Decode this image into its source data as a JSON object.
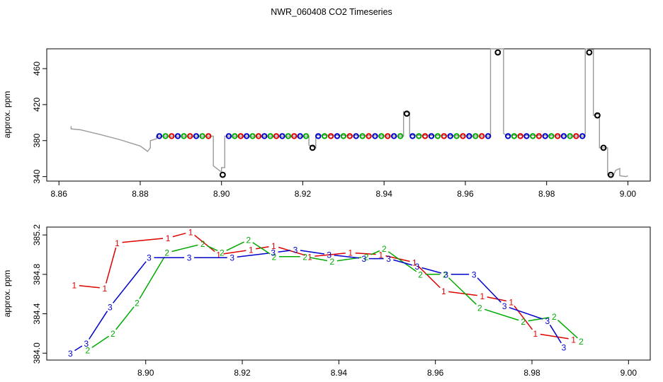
{
  "chart_data": [
    {
      "type": "line",
      "title": "NWR_060408  CO2 Timeseries",
      "ylabel": "approx. ppm",
      "xlim": [
        8.857,
        9.0055
      ],
      "ylim": [
        335,
        482
      ],
      "xticks": [
        "8.86",
        "8.88",
        "8.90",
        "8.92",
        "8.94",
        "8.96",
        "8.98",
        "9.00"
      ],
      "yticks": [
        "340",
        "380",
        "420",
        "460"
      ],
      "raw_trace": [
        [
          8.863,
          396
        ],
        [
          8.863,
          393
        ],
        [
          8.8653,
          392
        ],
        [
          8.87,
          387
        ],
        [
          8.875,
          381
        ],
        [
          8.88,
          374
        ],
        [
          8.8818,
          368
        ],
        [
          8.8825,
          372
        ],
        [
          8.8825,
          380
        ],
        [
          8.884,
          382
        ],
        [
          8.884,
          385
        ],
        [
          8.898,
          385
        ],
        [
          8.898,
          352
        ],
        [
          8.9,
          345
        ],
        [
          8.9,
          350
        ],
        [
          8.9008,
          350
        ],
        [
          8.9008,
          385
        ],
        [
          8.9215,
          385
        ],
        [
          8.9215,
          375
        ],
        [
          8.9232,
          372
        ],
        [
          8.9232,
          386
        ],
        [
          8.9448,
          385
        ],
        [
          8.9448,
          412
        ],
        [
          8.9463,
          411
        ],
        [
          8.9463,
          386
        ],
        [
          8.9662,
          385
        ],
        [
          8.9662,
          482
        ],
        [
          8.9694,
          482
        ],
        [
          8.9694,
          388
        ],
        [
          8.97,
          386
        ],
        [
          8.9895,
          385
        ],
        [
          8.9895,
          482
        ],
        [
          8.9915,
          481
        ],
        [
          8.9915,
          408
        ],
        [
          8.993,
          410
        ],
        [
          8.993,
          372
        ],
        [
          8.995,
          372
        ],
        [
          8.995,
          342
        ],
        [
          8.9965,
          342
        ],
        [
          8.997,
          347
        ],
        [
          8.998,
          349
        ],
        [
          8.998,
          341
        ],
        [
          8.9995,
          340
        ],
        [
          9.0,
          341
        ]
      ],
      "calibration_points": [
        {
          "x": 8.9003,
          "y": 342,
          "color": "black"
        },
        {
          "x": 8.9224,
          "y": 372,
          "color": "black"
        },
        {
          "x": 8.9456,
          "y": 410,
          "color": "black"
        },
        {
          "x": 8.968,
          "y": 478,
          "color": "black"
        },
        {
          "x": 8.9905,
          "y": 478,
          "color": "black"
        },
        {
          "x": 8.9925,
          "y": 408,
          "color": "black"
        },
        {
          "x": 8.994,
          "y": 372,
          "color": "black"
        },
        {
          "x": 8.9958,
          "y": 342,
          "color": "black"
        }
      ],
      "sample_groups": [
        {
          "x_start": 8.8847,
          "x_end": 8.8968,
          "y": 385,
          "first": "blue"
        },
        {
          "x_start": 8.9018,
          "x_end": 8.9208,
          "y": 385,
          "first": "blue"
        },
        {
          "x_start": 8.9238,
          "x_end": 8.944,
          "y": 385,
          "first": "blue"
        },
        {
          "x_start": 8.947,
          "x_end": 8.9656,
          "y": 385,
          "first": "blue"
        },
        {
          "x_start": 8.9705,
          "x_end": 8.9888,
          "y": 385,
          "first": "blue"
        }
      ],
      "colors": {
        "raw": "#9a9a9a",
        "ring_black": "#000000",
        "ring_red": "#dd0000",
        "ring_green": "#00aa00",
        "ring_blue": "#0000cc"
      }
    },
    {
      "type": "line",
      "ylabel": "approx. ppm",
      "xlim": [
        8.8795,
        9.0045
      ],
      "ylim": [
        383.93,
        385.28
      ],
      "xticks": [
        "8.90",
        "8.92",
        "8.94",
        "8.96",
        "8.98",
        "9.00"
      ],
      "yticks": [
        "384.0",
        "384.4",
        "384.8",
        "385.2"
      ],
      "series": [
        {
          "name": "1",
          "color": "#dd0000",
          "points": [
            [
              8.8852,
              384.69
            ],
            [
              8.8915,
              384.66
            ],
            [
              8.8941,
              385.12
            ],
            [
              8.9046,
              385.17
            ],
            [
              8.9093,
              385.23
            ],
            [
              8.9151,
              385.0
            ],
            [
              8.9218,
              385.05
            ],
            [
              8.9265,
              385.09
            ],
            [
              8.934,
              384.98
            ],
            [
              8.9424,
              385.02
            ],
            [
              8.9487,
              385.0
            ],
            [
              8.9557,
              384.92
            ],
            [
              8.9617,
              384.63
            ],
            [
              8.9697,
              384.58
            ],
            [
              8.9757,
              384.52
            ],
            [
              8.9807,
              384.2
            ],
            [
              8.9886,
              384.14
            ]
          ]
        },
        {
          "name": "2",
          "color": "#00aa00",
          "points": [
            [
              8.888,
              384.03
            ],
            [
              8.8932,
              384.2
            ],
            [
              8.8982,
              384.51
            ],
            [
              8.9044,
              385.02
            ],
            [
              8.9118,
              385.11
            ],
            [
              8.9158,
              385.02
            ],
            [
              8.9213,
              385.15
            ],
            [
              8.9266,
              384.98
            ],
            [
              8.933,
              384.98
            ],
            [
              8.9386,
              384.93
            ],
            [
              8.9457,
              384.98
            ],
            [
              8.9494,
              385.06
            ],
            [
              8.9569,
              384.8
            ],
            [
              8.962,
              384.8
            ],
            [
              8.9692,
              384.46
            ],
            [
              8.9782,
              384.32
            ],
            [
              8.9846,
              384.37
            ],
            [
              8.9902,
              384.12
            ]
          ]
        },
        {
          "name": "3",
          "color": "#0000cc",
          "points": [
            [
              8.8844,
              384.0
            ],
            [
              8.8877,
              384.1
            ],
            [
              8.8926,
              384.47
            ],
            [
              8.9007,
              384.97
            ],
            [
              8.909,
              384.97
            ],
            [
              8.9179,
              384.97
            ],
            [
              8.9264,
              385.02
            ],
            [
              8.931,
              385.05
            ],
            [
              8.938,
              385.0
            ],
            [
              8.9452,
              384.96
            ],
            [
              8.9503,
              384.96
            ],
            [
              8.9562,
              384.88
            ],
            [
              8.9622,
              384.8
            ],
            [
              8.968,
              384.8
            ],
            [
              8.9743,
              384.48
            ],
            [
              8.9832,
              384.33
            ],
            [
              8.9866,
              384.06
            ]
          ]
        }
      ]
    }
  ]
}
